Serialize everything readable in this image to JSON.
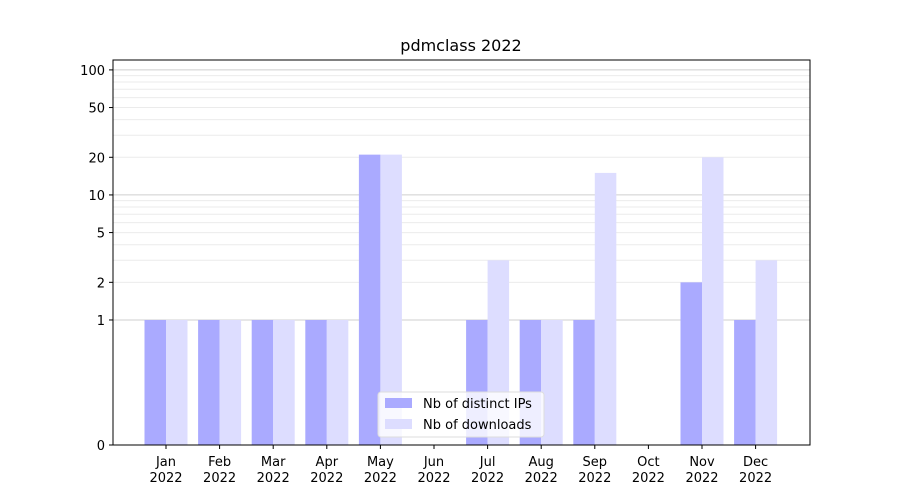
{
  "chart_data": {
    "type": "bar",
    "title": "pdmclass 2022",
    "scale": "symlog",
    "categories": [
      "Jan\n2022",
      "Feb\n2022",
      "Mar\n2022",
      "Apr\n2022",
      "May\n2022",
      "Jun\n2022",
      "Jul\n2022",
      "Aug\n2022",
      "Sep\n2022",
      "Oct\n2022",
      "Nov\n2022",
      "Dec\n2022"
    ],
    "series": [
      {
        "name": "Nb of distinct IPs",
        "color": "#aaaaff",
        "values": [
          1,
          1,
          1,
          1,
          21,
          0,
          1,
          1,
          1,
          0,
          2,
          1
        ]
      },
      {
        "name": "Nb of downloads",
        "color": "#ddddff",
        "values": [
          1,
          1,
          1,
          1,
          21,
          0,
          3,
          1,
          15,
          0,
          20,
          3
        ]
      }
    ],
    "yticks": [
      0,
      1,
      2,
      5,
      10,
      20,
      50,
      100
    ],
    "ylim": [
      0,
      120
    ],
    "grid": true,
    "legend_position": "lower-center"
  }
}
